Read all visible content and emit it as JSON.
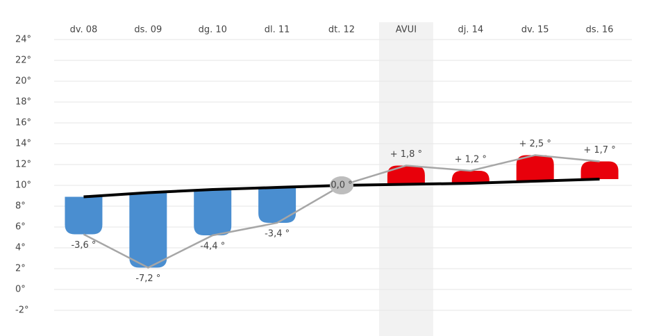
{
  "chart_data": {
    "type": "anomaly-bar",
    "categories": [
      "dv. 08",
      "ds. 09",
      "dg. 10",
      "dl. 11",
      "dt. 12",
      "AVUI",
      "dj. 14",
      "dv. 15",
      "ds. 16"
    ],
    "normal": [
      8.9,
      9.3,
      9.6,
      9.8,
      10.0,
      10.1,
      10.2,
      10.4,
      10.6
    ],
    "values": [
      -3.6,
      -7.2,
      -4.4,
      -3.4,
      0.0,
      1.8,
      1.2,
      2.5,
      1.7
    ],
    "value_labels": [
      "-3,6 °",
      "-7,2 °",
      "-4,4 °",
      "-3,4 °",
      "0,0 °",
      "+ 1,8 °",
      "+ 1,2 °",
      "+ 2,5 °",
      "+ 1,7 °"
    ],
    "colors": {
      "negative": "#4a8ed0",
      "positive": "#e8000b",
      "zero": "#bdbdbd",
      "normal": "#000000",
      "actual": "#a6a6a6"
    },
    "highlight_index": 5,
    "ylim": [
      -2,
      24
    ],
    "yticks": [
      {
        "value": -2,
        "label": "-2°"
      },
      {
        "value": 0,
        "label": "0°"
      },
      {
        "value": 2,
        "label": "2°"
      },
      {
        "value": 4,
        "label": "4°"
      },
      {
        "value": 6,
        "label": "6°"
      },
      {
        "value": 8,
        "label": "8°"
      },
      {
        "value": 10,
        "label": "10°"
      },
      {
        "value": 12,
        "label": "12°"
      },
      {
        "value": 14,
        "label": "14°"
      },
      {
        "value": 16,
        "label": "16°"
      },
      {
        "value": 18,
        "label": "18°"
      },
      {
        "value": 20,
        "label": "20°"
      },
      {
        "value": 22,
        "label": "22°"
      },
      {
        "value": 24,
        "label": "24°"
      }
    ],
    "grid": true
  }
}
